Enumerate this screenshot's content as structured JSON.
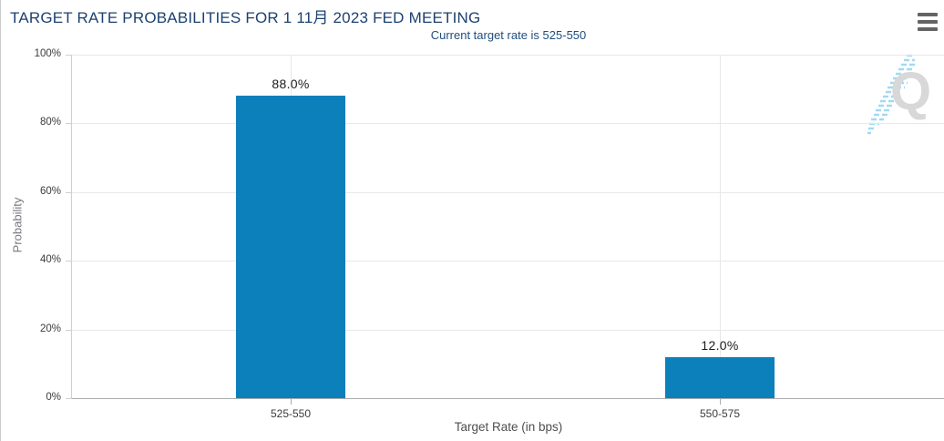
{
  "widget": {
    "title": "TARGET RATE PROBABILITIES FOR 1 11月 2023 FED MEETING",
    "subtitle": "Current target rate is 525-550",
    "watermark_letter": "Q"
  },
  "chart_data": {
    "type": "bar",
    "title": "TARGET RATE PROBABILITIES FOR 1 11月 2023 FED MEETING",
    "subtitle": "Current target rate is 525-550",
    "categories": [
      "525-550",
      "550-575"
    ],
    "values": [
      88.0,
      12.0
    ],
    "value_labels": [
      "88.0%",
      "12.0%"
    ],
    "xlabel": "Target Rate (in bps)",
    "ylabel": "Probability",
    "ylim": [
      0,
      100
    ],
    "yticks": [
      0,
      20,
      40,
      60,
      80,
      100
    ],
    "ytick_labels": [
      "0%",
      "20%",
      "40%",
      "60%",
      "80%",
      "100%"
    ],
    "grid": true,
    "legend": false,
    "bar_color": "#0b80bb"
  },
  "colors": {
    "title": "#1c4170",
    "subtitle": "#1f4e7e",
    "bar": "#0b80bb",
    "gridline": "#e8e8e8",
    "axis_line": "#adadad",
    "y_axis_line": "#cfcfcf",
    "tick_label": "#3c3c3c",
    "value_label": "#1b1b1b",
    "x_axis_title": "#4e4e4e",
    "y_axis_title": "#74777c",
    "menu_icon": "#646464",
    "watermark_letter": "#d8d8d8",
    "watermark_dashes": "#a2d9f3",
    "left_border": "#cccccc"
  }
}
